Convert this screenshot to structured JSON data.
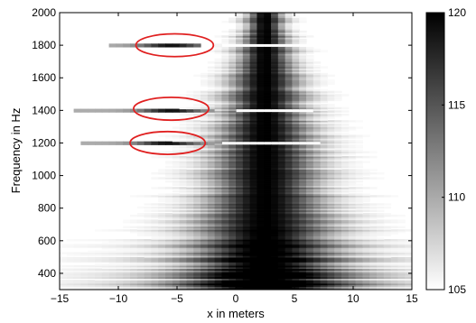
{
  "chart_data": {
    "type": "heatmap",
    "xlabel": "x in meters",
    "ylabel": "Frequency in Hz",
    "xlim": [
      -15,
      15
    ],
    "ylim": [
      300,
      2000
    ],
    "xticks": [
      -15,
      -10,
      -5,
      0,
      5,
      10,
      15
    ],
    "xtick_labels": [
      "−15",
      "−10",
      "−5",
      "0",
      "5",
      "10",
      "15"
    ],
    "yticks": [
      400,
      600,
      800,
      1000,
      1200,
      1400,
      1600,
      1800,
      2000
    ],
    "ytick_labels": [
      "400",
      "600",
      "800",
      "1000",
      "1200",
      "1400",
      "1600",
      "1800",
      "2000"
    ],
    "colorbar": {
      "range": [
        105,
        120
      ],
      "ticks": [
        105,
        110,
        115,
        120
      ],
      "tick_labels": [
        "105",
        "110",
        "115",
        "120"
      ],
      "colormap": "gray-reversed"
    },
    "central_lobe": {
      "x_center": 2.5,
      "peak_level": 120,
      "half_width_at_2000_hz": 1.5,
      "half_width_at_300_hz": 7.0
    },
    "bright_bands": [
      {
        "frequency": 1200,
        "x_from": -13,
        "x_to": -2,
        "peak_x": -5.8,
        "level": 119
      },
      {
        "frequency": 1400,
        "x_from": -14,
        "x_to": -2,
        "peak_x": -5.5,
        "level": 119
      },
      {
        "frequency": 1800,
        "x_from": -11,
        "x_to": -3,
        "peak_x": -5.5,
        "level": 119
      }
    ],
    "gaps": [
      {
        "frequency": 1200,
        "x_from": -1,
        "x_to": 7
      },
      {
        "frequency": 1400,
        "x_from": 0,
        "x_to": 6.5
      },
      {
        "frequency": 1800,
        "x_from": -1,
        "x_to": 7
      }
    ],
    "annotations": [
      {
        "shape": "ellipse",
        "color": "#e02020",
        "cx": -5.2,
        "cy": 1800,
        "rx": 3.3,
        "ry": 70
      },
      {
        "shape": "ellipse",
        "color": "#e02020",
        "cx": -5.5,
        "cy": 1410,
        "rx": 3.2,
        "ry": 70
      },
      {
        "shape": "ellipse",
        "color": "#e02020",
        "cx": -5.8,
        "cy": 1200,
        "rx": 3.2,
        "ry": 70
      }
    ]
  }
}
